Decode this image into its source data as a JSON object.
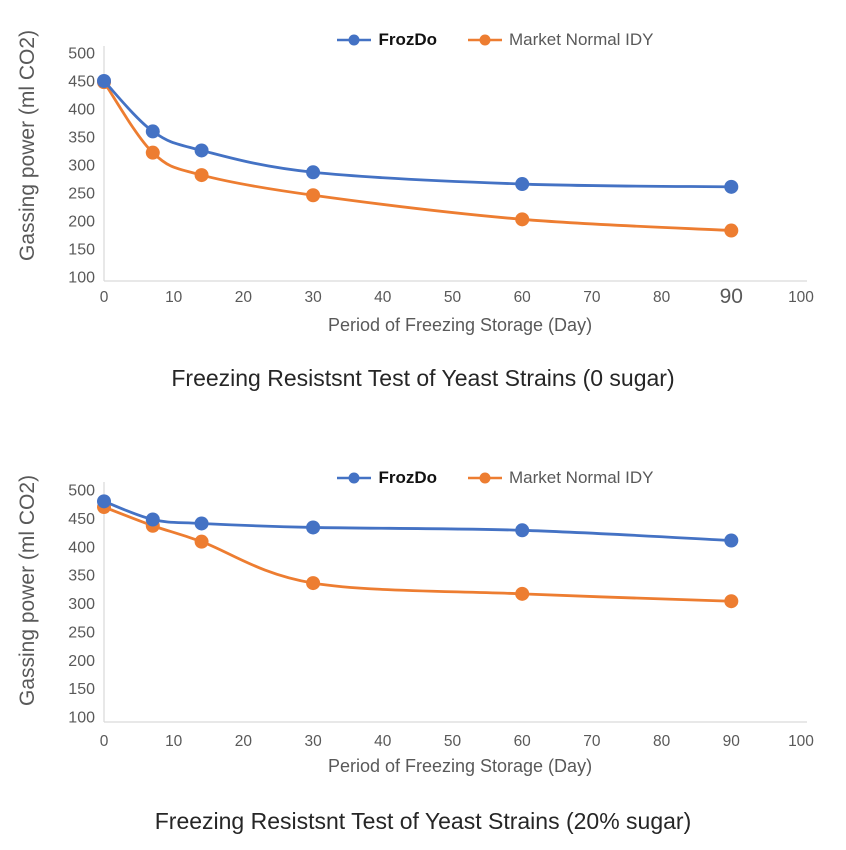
{
  "colors": {
    "series_blue": "#4472C4",
    "series_orange": "#ED7D31",
    "axis_line": "#D9D9D9",
    "tick_text": "#595959",
    "title_text": "#262626"
  },
  "chart_data": [
    {
      "type": "line",
      "title": "Freezing Resistsnt Test of Yeast Strains (0 sugar)",
      "xlabel": "Period of Freezing Storage (Day)",
      "ylabel": "Gassing power (ml CO2)",
      "x": [
        0,
        7,
        14,
        30,
        60,
        90
      ],
      "xlim": [
        0,
        100
      ],
      "ylim": [
        100,
        500
      ],
      "x_ticks": [
        0,
        10,
        20,
        30,
        40,
        50,
        60,
        70,
        80,
        90,
        100
      ],
      "y_ticks": [
        500,
        450,
        400,
        350,
        300,
        250,
        200,
        150,
        100
      ],
      "enlarged_x_tick": 90,
      "grid": false,
      "legend_position": "top-center",
      "series": [
        {
          "name": "FrozDo",
          "color": "#4472C4",
          "values": [
            450,
            360,
            326,
            287,
            266,
            261
          ]
        },
        {
          "name": "Market Normal IDY",
          "color": "#ED7D31",
          "values": [
            448,
            322,
            282,
            246,
            203,
            183
          ]
        }
      ]
    },
    {
      "type": "line",
      "title": "Freezing Resistsnt Test of Yeast Strains (20% sugar)",
      "xlabel": "Period of Freezing Storage (Day)",
      "ylabel": "Gassing power (ml CO2)",
      "x": [
        0,
        7,
        14,
        30,
        60,
        90
      ],
      "xlim": [
        0,
        100
      ],
      "ylim": [
        100,
        500
      ],
      "x_ticks": [
        0,
        10,
        20,
        30,
        40,
        50,
        60,
        70,
        80,
        90,
        100
      ],
      "y_ticks": [
        500,
        450,
        400,
        350,
        300,
        250,
        200,
        150,
        100
      ],
      "enlarged_x_tick": null,
      "grid": false,
      "legend_position": "top-center",
      "series": [
        {
          "name": "FrozDo",
          "color": "#4472C4",
          "values": [
            480,
            448,
            441,
            434,
            429,
            411
          ]
        },
        {
          "name": "Market Normal IDY",
          "color": "#ED7D31",
          "values": [
            470,
            437,
            409,
            336,
            317,
            304
          ]
        }
      ]
    }
  ]
}
